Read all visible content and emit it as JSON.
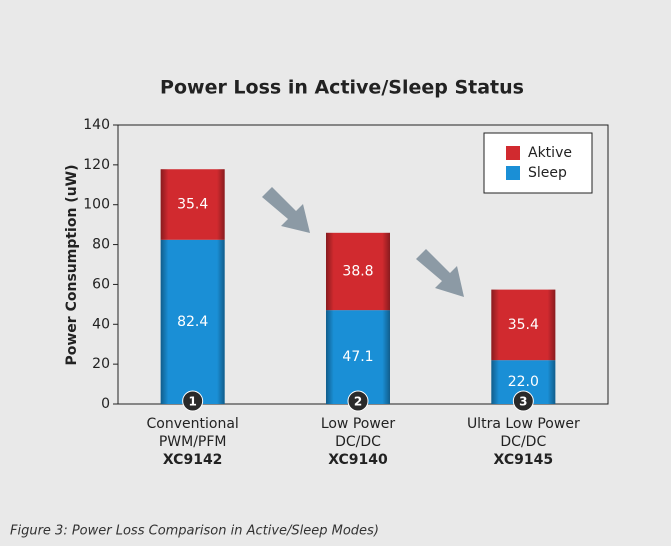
{
  "chart_data": {
    "type": "stacked_bar",
    "title": "Power Loss in Active/Sleep Status",
    "y_label": "Power Consumption (uW)",
    "caption": "Figure 3: Power Loss Comparison in Active/Sleep Modes)",
    "categories": [
      [
        "Conventional",
        "PWM/PFM"
      ],
      [
        "Low Power",
        "DC/DC"
      ],
      [
        "Ultra Low Power",
        "DC/DC"
      ]
    ],
    "category_codes": [
      "XC9142",
      "XC9140",
      "XC9145"
    ],
    "category_numbers": [
      1,
      2,
      3
    ],
    "series": [
      {
        "name": "Sleep",
        "color": "#1a8fd6",
        "values": [
          82.4,
          47.1,
          22.0
        ],
        "value_labels": [
          "82.4",
          "47.1",
          "22.0"
        ]
      },
      {
        "name": "Aktive",
        "color": "#d12a2f",
        "values": [
          35.4,
          38.8,
          35.4
        ],
        "value_labels": [
          "35.4",
          "38.8",
          "35.4"
        ]
      }
    ],
    "ylim": [
      0,
      140
    ],
    "yticks": [
      0,
      20,
      40,
      60,
      80,
      100,
      120,
      140
    ],
    "legend": "top-right"
  }
}
